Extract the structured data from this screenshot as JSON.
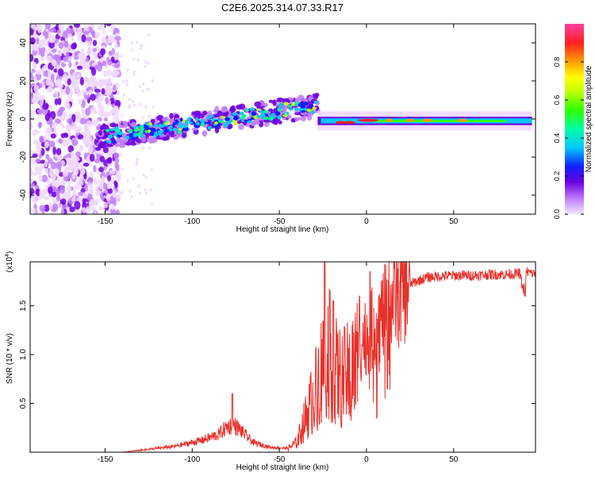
{
  "chart_data": [
    {
      "type": "heatmap",
      "title": "C2E6.2025.314.07.33.R17",
      "xlabel": "Height of straight line (km)",
      "ylabel": "Frequency (Hz)",
      "xlim": [
        -193,
        97
      ],
      "ylim": [
        -50,
        50
      ],
      "xticks": [
        -150,
        -100,
        -50,
        0,
        50
      ],
      "xtick_labels": [
        "-150",
        "-100",
        "-50",
        "0",
        "50"
      ],
      "yticks": [
        -40,
        -20,
        0,
        20,
        40
      ],
      "ytick_labels": [
        "-40",
        "-20",
        "0",
        "20",
        "40"
      ],
      "colorbar": {
        "label": "Normalized spectral amplitude",
        "range": [
          0,
          1
        ],
        "ticks": [
          0.0,
          0.2,
          0.4,
          0.6,
          0.8
        ],
        "tick_labels": [
          "0.0",
          "0.2",
          "0.4",
          "0.6",
          "0.8"
        ],
        "colors": [
          "#f0d8ff",
          "#c080ff",
          "#7000e0",
          "#0020ff",
          "#00c8ff",
          "#00ff90",
          "#30ff00",
          "#c8ff00",
          "#ffff00",
          "#ffa000",
          "#ff2020",
          "#ff40a0"
        ]
      },
      "features": {
        "noise_region_x": [
          -193,
          -142
        ],
        "main_band": {
          "x": [
            -155,
            -28
          ],
          "freq_start": -10,
          "freq_end": 7
        },
        "tone_band": {
          "x": [
            -28,
            95
          ],
          "freq": -1,
          "half_width": 5
        }
      }
    },
    {
      "type": "line",
      "xlabel": "Height of straight line (km)",
      "ylabel": "SNR (10 * v/v)",
      "scale_label": "(x10",
      "scale_exponent": "4",
      "scale_close": ")",
      "xlim": [
        -193,
        97
      ],
      "ylim": [
        0,
        1.95
      ],
      "xticks": [
        -150,
        -100,
        -50,
        0,
        50
      ],
      "xtick_labels": [
        "-150",
        "-100",
        "-50",
        "0",
        "50"
      ],
      "yticks": [
        0.5,
        1.0,
        1.5
      ],
      "ytick_labels": [
        "0.5",
        "1.0",
        "1.5"
      ],
      "color": "#e8302a",
      "envelope": {
        "x": [
          -193,
          -140,
          -130,
          -110,
          -95,
          -85,
          -80,
          -76,
          -72,
          -65,
          -55,
          -45,
          -40,
          -35,
          -30,
          -26,
          -23,
          -20,
          -17,
          -14,
          -10,
          -7,
          -4,
          -2,
          0,
          3,
          6,
          10,
          15,
          20,
          25,
          30,
          35,
          40,
          50,
          60,
          70,
          80,
          88,
          90,
          92,
          95
        ],
        "y": [
          0.0,
          0.0,
          0.02,
          0.06,
          0.12,
          0.18,
          0.26,
          0.28,
          0.22,
          0.1,
          0.05,
          0.04,
          0.1,
          0.35,
          0.6,
          0.85,
          1.05,
          0.95,
          0.8,
          0.75,
          0.8,
          0.9,
          1.05,
          1.15,
          1.2,
          1.25,
          1.32,
          1.42,
          1.55,
          1.65,
          1.72,
          1.76,
          1.79,
          1.8,
          1.81,
          1.81,
          1.82,
          1.82,
          1.83,
          1.65,
          1.85,
          1.83
        ]
      },
      "spikes": [
        {
          "x": -77,
          "y": 0.6
        },
        {
          "x": -24,
          "y": 1.95
        },
        {
          "x": -21,
          "y": 1.65
        },
        {
          "x": -19,
          "y": 1.55
        },
        {
          "x": -4,
          "y": 1.6
        },
        {
          "x": 2,
          "y": 1.85
        },
        {
          "x": 6,
          "y": 0.35
        },
        {
          "x": 12,
          "y": 0.65
        },
        {
          "x": 91,
          "y": 1.6
        }
      ]
    }
  ]
}
